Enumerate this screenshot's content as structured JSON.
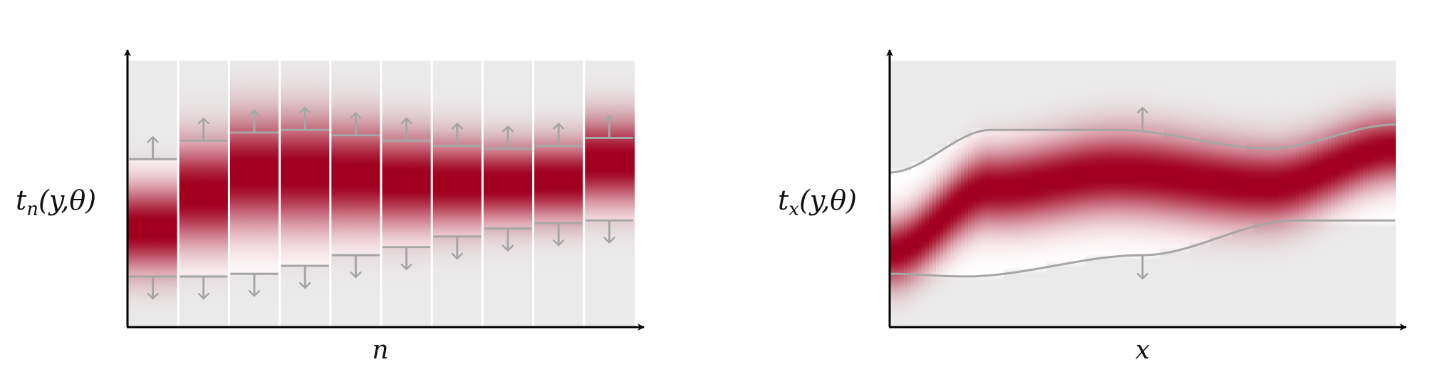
{
  "colors": {
    "background": "#ebebeb",
    "density": "#a0001e",
    "bound": "#a6a6a6",
    "axis": "#000000",
    "separator": "#ffffff"
  },
  "left_panel": {
    "ylabel": {
      "main": "t",
      "sub": "n",
      "args": "(y,θ)"
    },
    "xlabel": "n",
    "columns": [
      {
        "upper": 0.63,
        "lower": 0.19,
        "center": 0.37,
        "spread": 0.11
      },
      {
        "upper": 0.7,
        "lower": 0.19,
        "center": 0.5,
        "spread": 0.13
      },
      {
        "upper": 0.73,
        "lower": 0.2,
        "center": 0.58,
        "spread": 0.14
      },
      {
        "upper": 0.74,
        "lower": 0.23,
        "center": 0.58,
        "spread": 0.14
      },
      {
        "upper": 0.72,
        "lower": 0.27,
        "center": 0.57,
        "spread": 0.13
      },
      {
        "upper": 0.7,
        "lower": 0.3,
        "center": 0.55,
        "spread": 0.12
      },
      {
        "upper": 0.68,
        "lower": 0.34,
        "center": 0.54,
        "spread": 0.11
      },
      {
        "upper": 0.67,
        "lower": 0.37,
        "center": 0.54,
        "spread": 0.1
      },
      {
        "upper": 0.68,
        "lower": 0.39,
        "center": 0.55,
        "spread": 0.1
      },
      {
        "upper": 0.71,
        "lower": 0.4,
        "center": 0.62,
        "spread": 0.11
      }
    ]
  },
  "right_panel": {
    "ylabel": {
      "main": "t",
      "sub": "x",
      "args": "(y,θ)"
    },
    "xlabel": "x",
    "upper_curve": [
      [
        0,
        0.58
      ],
      [
        0.2,
        0.74
      ],
      [
        0.45,
        0.74
      ],
      [
        0.75,
        0.67
      ],
      [
        1,
        0.76
      ]
    ],
    "lower_curve": [
      [
        0,
        0.2
      ],
      [
        0.15,
        0.19
      ],
      [
        0.5,
        0.27
      ],
      [
        0.8,
        0.4
      ],
      [
        1,
        0.4
      ]
    ],
    "center_curve": [
      [
        0,
        0.28
      ],
      [
        0.2,
        0.52
      ],
      [
        0.45,
        0.58
      ],
      [
        0.75,
        0.53
      ],
      [
        1,
        0.67
      ]
    ]
  }
}
